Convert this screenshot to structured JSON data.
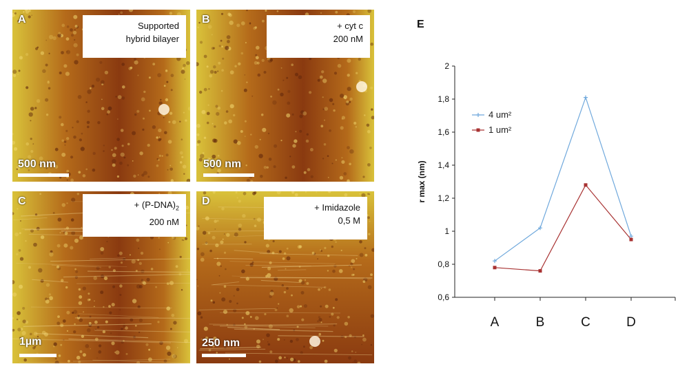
{
  "panels": [
    {
      "id": "A",
      "label": "A",
      "caption_line1": "Supported",
      "caption_line2": "hybrid bilayer",
      "caption_sub": "",
      "scale": "500 nm"
    },
    {
      "id": "B",
      "label": "B",
      "caption_line1": "+ cyt c",
      "caption_line2": "200 nM",
      "caption_sub": "",
      "scale": "500 nm"
    },
    {
      "id": "C",
      "label": "C",
      "caption_line1": "+ (P-DNA)",
      "caption_line2": "200 nM",
      "caption_sub": "2",
      "scale": "1µm"
    },
    {
      "id": "D",
      "label": "D",
      "caption_line1": "+ Imidazole",
      "caption_line2": "0,5 M",
      "caption_sub": "",
      "scale": "250 nm"
    }
  ],
  "colors": {
    "afm_dark": "#8a3a10",
    "afm_mid": "#b46a1a",
    "afm_light": "#d9c23a",
    "series_4um": "#6fa8dc",
    "series_1um": "#a83232"
  },
  "chart_data": {
    "type": "line",
    "panel_label": "E",
    "categories": [
      "A",
      "B",
      "C",
      "D"
    ],
    "ylabel": "r max (nm)",
    "ylim": [
      0.6,
      2
    ],
    "yticks": [
      "0,6",
      "0,8",
      "1",
      "1,2",
      "1,4",
      "1,6",
      "1,8",
      "2"
    ],
    "series": [
      {
        "name": "4 um²",
        "values": [
          0.82,
          1.02,
          1.81,
          0.97
        ]
      },
      {
        "name": "1 um²",
        "values": [
          0.78,
          0.76,
          1.28,
          0.95
        ]
      }
    ],
    "legend_placement": "top-left"
  }
}
